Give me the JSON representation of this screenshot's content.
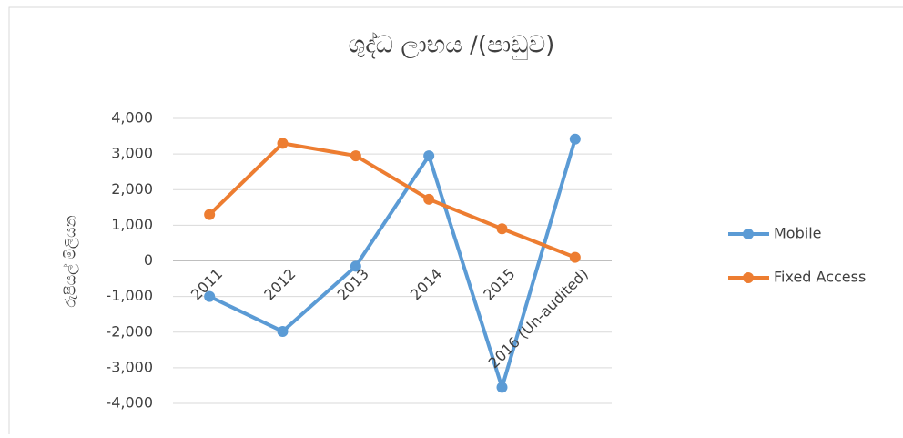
{
  "chart_data": {
    "type": "line",
    "title": "ශුද්ධ ලාභය /(පාඩුව)",
    "y_label": "රුපියල් මිලියන",
    "categories": [
      "2011",
      "2012",
      "2013",
      "2014",
      "2015",
      "2016 (Un-audited)"
    ],
    "series": [
      {
        "name": "Mobile",
        "color": "#5b9bd5",
        "values": [
          -1000,
          -1980,
          -150,
          2950,
          -3550,
          3420
        ]
      },
      {
        "name": "Fixed Access",
        "color": "#ed7d31",
        "values": [
          1300,
          3300,
          2950,
          1730,
          900,
          100
        ]
      }
    ],
    "ylim": [
      -4000,
      4000
    ],
    "yticks": [
      {
        "value": -4000,
        "label": "-4,000"
      },
      {
        "value": -3000,
        "label": "-3,000"
      },
      {
        "value": -2000,
        "label": "-2,000"
      },
      {
        "value": -1000,
        "label": "-1,000"
      },
      0,
      {
        "value": 1000,
        "label": "1,000"
      },
      {
        "value": 2000,
        "label": "2,000"
      },
      {
        "value": 3000,
        "label": "3,000"
      },
      {
        "value": 4000,
        "label": "4,000"
      }
    ],
    "grid": true,
    "legend": "right"
  }
}
